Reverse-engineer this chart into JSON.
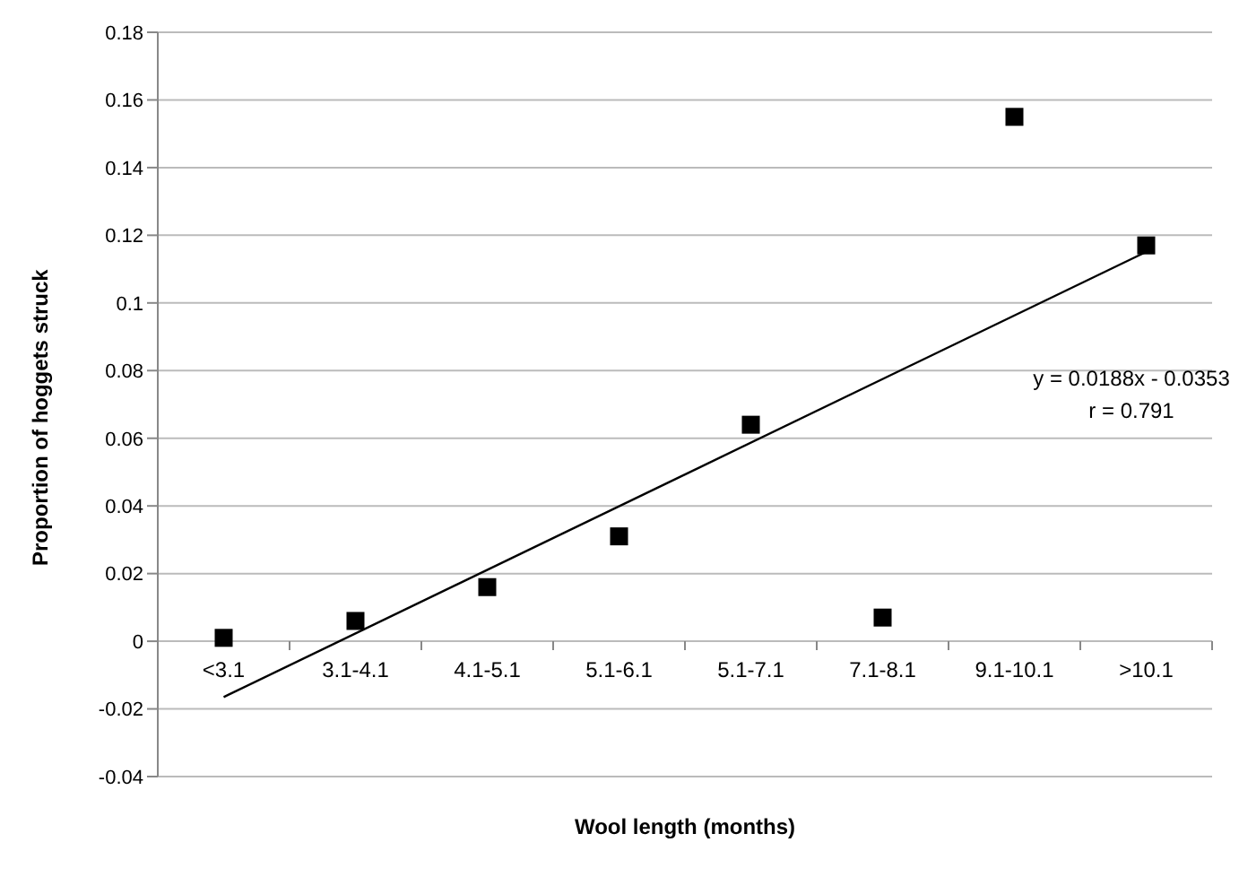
{
  "chart_data": {
    "type": "scatter",
    "xlabel": "Wool length (months)",
    "ylabel": "Proportion of hoggets struck",
    "categories": [
      "<3.1",
      "3.1-4.1",
      "4.1-5.1",
      "5.1-6.1",
      "5.1-7.1",
      "7.1-8.1",
      "9.1-10.1",
      ">10.1"
    ],
    "series": [
      {
        "color": "#000000",
        "marker": "square",
        "values": [
          0.001,
          0.006,
          0.016,
          0.031,
          0.064,
          0.007,
          0.155,
          0.117
        ]
      },
      {
        "type": "line",
        "color": "#000000",
        "marker": "none",
        "x": [
          "<3.1",
          ">10.1"
        ],
        "values": [
          -0.0165,
          0.1151
        ]
      }
    ],
    "ylim": [
      -0.04,
      0.18
    ],
    "yticks": [
      -0.04,
      -0.02,
      0,
      0.02,
      0.04,
      0.06,
      0.08,
      0.1,
      0.12,
      0.14,
      0.16,
      0.18
    ],
    "grid": "y",
    "legend": false,
    "annotations": [
      "y = 0.0188x - 0.0353",
      "r = 0.791"
    ]
  }
}
